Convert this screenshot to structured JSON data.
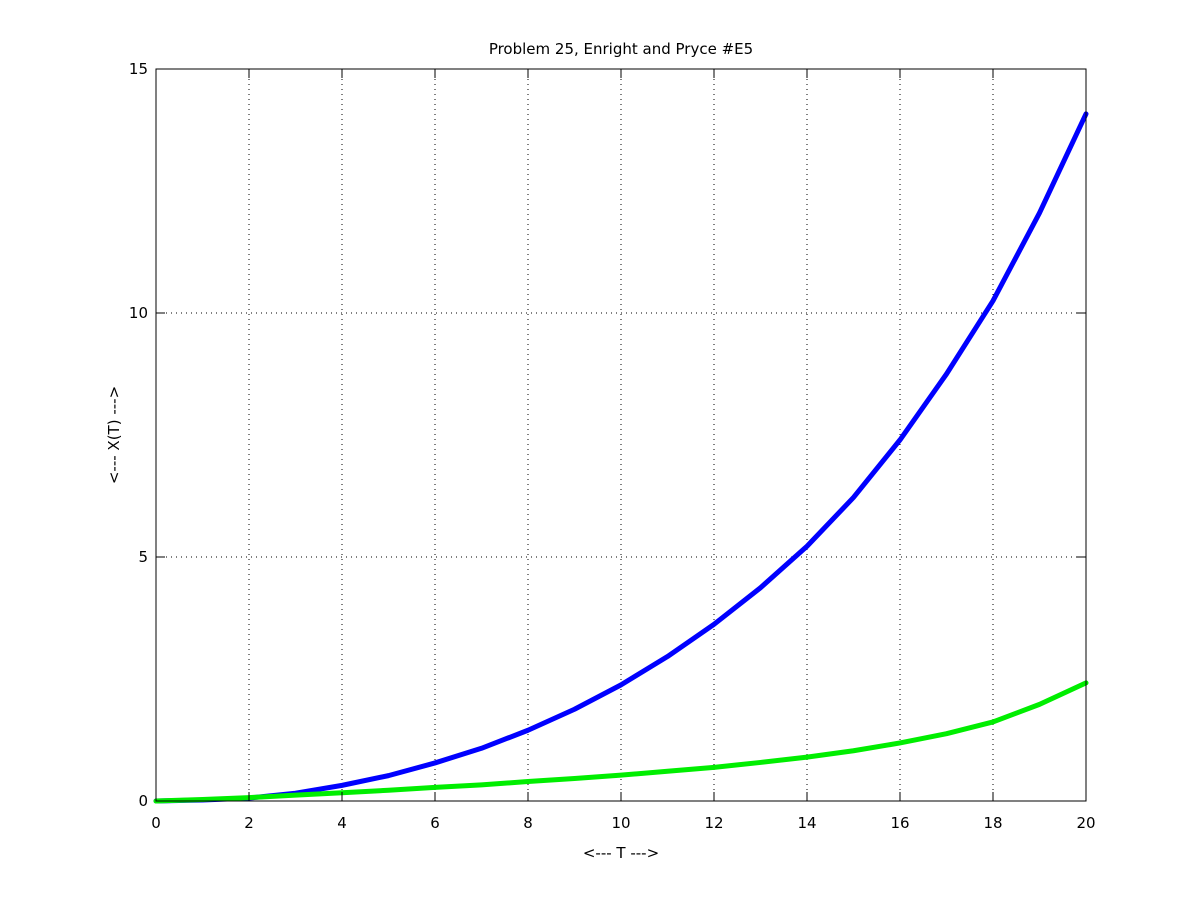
{
  "chart_data": {
    "type": "line",
    "title": "Problem 25, Enright and Pryce #E5",
    "xlabel": "<--- T --->",
    "ylabel": "<--- X(T) --->",
    "xlim": [
      0,
      20
    ],
    "ylim": [
      0,
      15
    ],
    "xticks": [
      0,
      2,
      4,
      6,
      8,
      10,
      12,
      14,
      16,
      18,
      20
    ],
    "yticks": [
      0,
      5,
      10,
      15
    ],
    "grid": true,
    "grid_style": "dotted",
    "legend": "none",
    "x": [
      0,
      1,
      2,
      3,
      4,
      5,
      6,
      7,
      8,
      9,
      10,
      11,
      12,
      13,
      14,
      15,
      16,
      17,
      18,
      19,
      20
    ],
    "series": [
      {
        "color": "#0000ff",
        "values": [
          0.0,
          0.02,
          0.06,
          0.16,
          0.32,
          0.52,
          0.78,
          1.08,
          1.45,
          1.88,
          2.38,
          2.96,
          3.62,
          4.37,
          5.22,
          6.22,
          7.4,
          8.75,
          10.25,
          12.05,
          14.08
        ]
      },
      {
        "color": "#00ee00",
        "values": [
          0.0,
          0.03,
          0.07,
          0.12,
          0.17,
          0.22,
          0.28,
          0.33,
          0.4,
          0.46,
          0.53,
          0.61,
          0.69,
          0.79,
          0.9,
          1.03,
          1.19,
          1.38,
          1.62,
          1.98,
          2.42
        ]
      }
    ]
  }
}
